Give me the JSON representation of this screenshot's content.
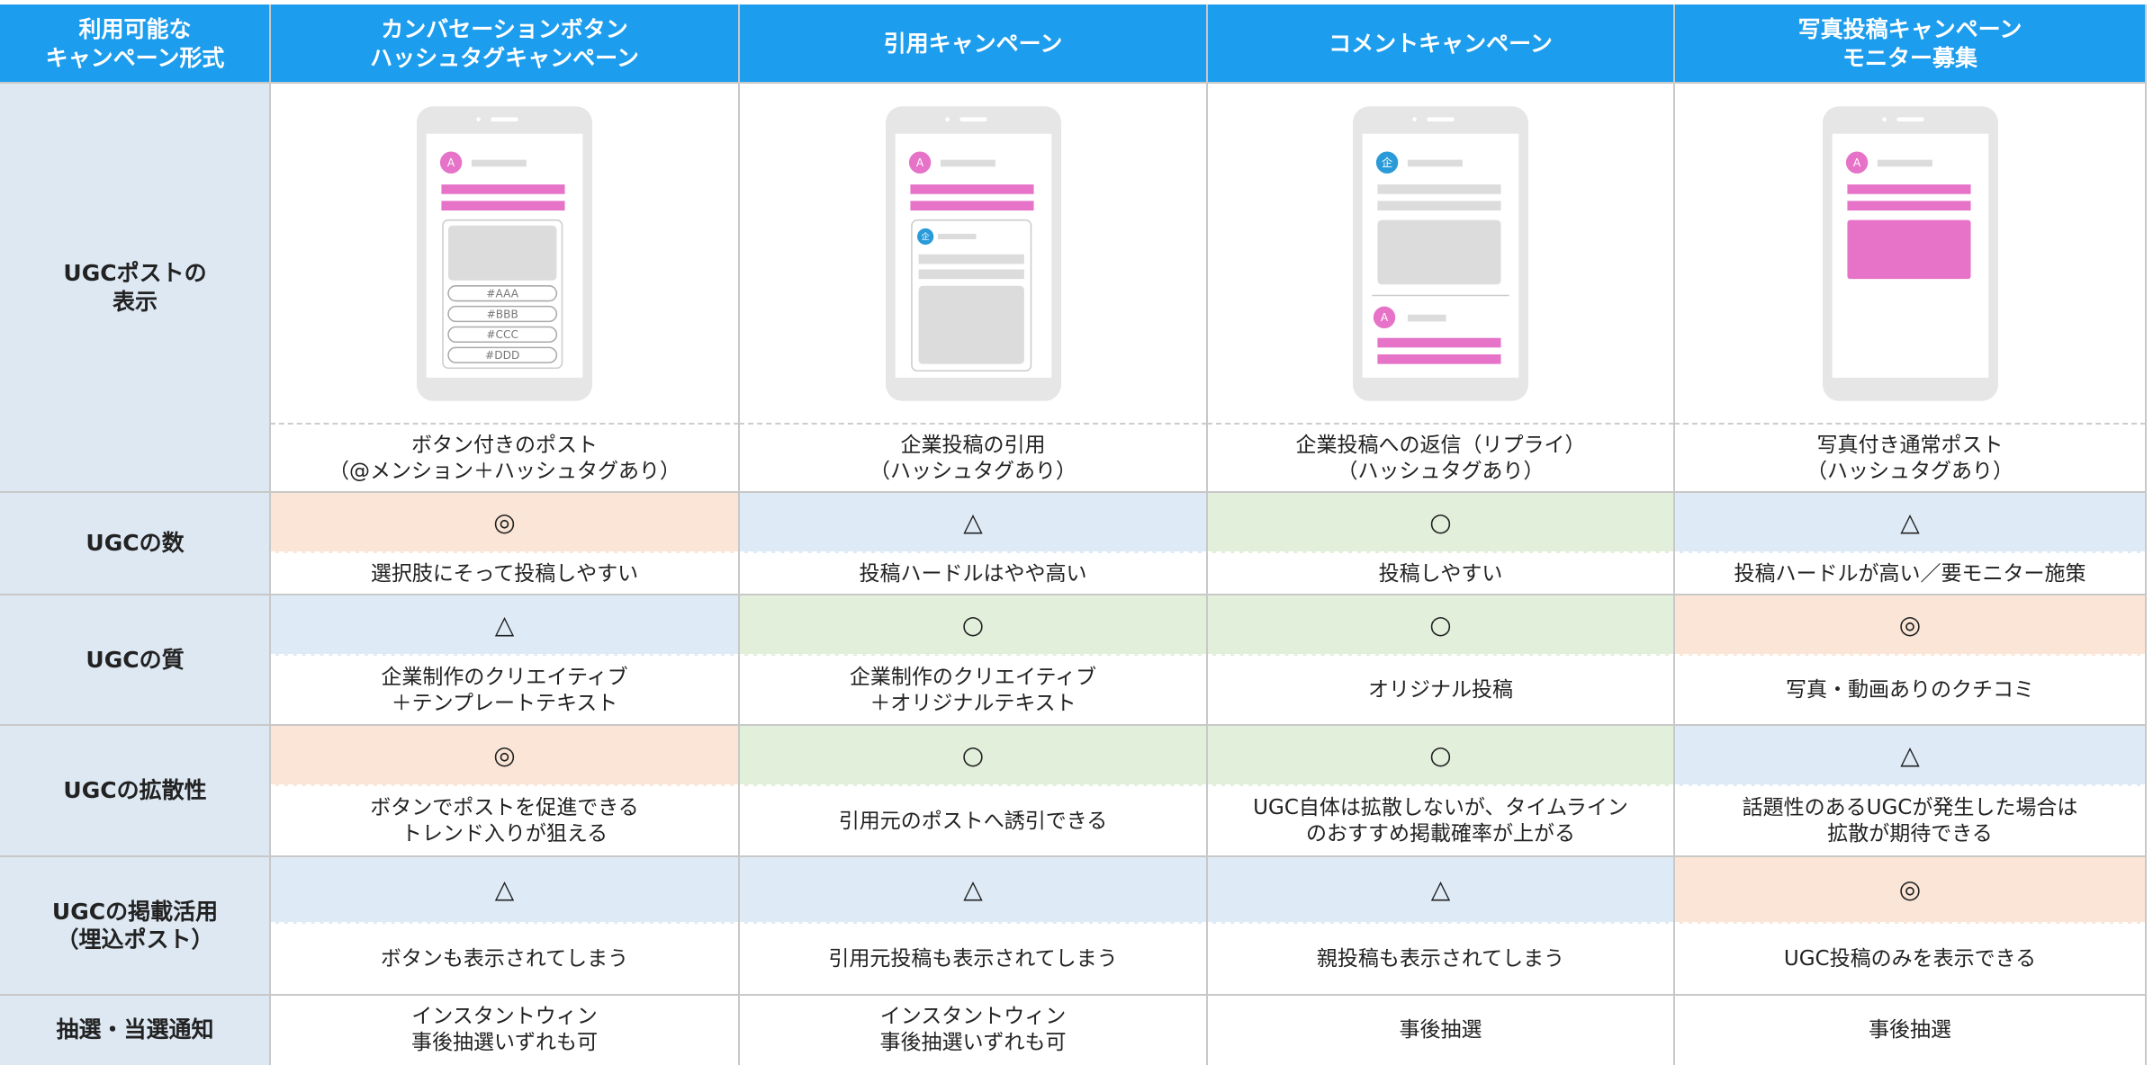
{
  "header": [
    "利用可能な\nキャンペーン形式",
    "カンバセーションボタン\nハッシュタグキャンペーン",
    "引用キャンペーン",
    "コメントキャンペーン",
    "写真投稿キャンペーン\nモニター募集"
  ],
  "display": {
    "label": "UGCポストの\n表示",
    "mockups": [
      {
        "avatars": [
          "A"
        ],
        "tags": [
          "#AAA",
          "#BBB",
          "#CCC",
          "#DDD"
        ]
      },
      {
        "avatars": [
          "A",
          "企"
        ]
      },
      {
        "avatars": [
          "企",
          "A"
        ]
      },
      {
        "avatars": [
          "A"
        ]
      }
    ],
    "captions": [
      "ボタン付きのポスト\n（@メンション＋ハッシュタグあり）",
      "企業投稿の引用\n（ハッシュタグあり）",
      "企業投稿への返信（リプライ）\n（ハッシュタグあり）",
      "写真付き通常ポスト\n（ハッシュタグあり）"
    ]
  },
  "rating_colors": {
    "◎": "#fbe5d6",
    "△": "#deebf7",
    "○": "#e2efda"
  },
  "rows": [
    {
      "label": "UGCの数",
      "ratings": [
        "◎",
        "△",
        "○",
        "△"
      ],
      "notes": [
        "選択肢にそって投稿しやすい",
        "投稿ハードルはやや高い",
        "投稿しやすい",
        "投稿ハードルが高い／要モニター施策"
      ]
    },
    {
      "label": "UGCの質",
      "ratings": [
        "△",
        "○",
        "○",
        "◎"
      ],
      "notes": [
        "企業制作のクリエイティブ\n＋テンプレートテキスト",
        "企業制作のクリエイティブ\n＋オリジナルテキスト",
        "オリジナル投稿",
        "写真・動画ありのクチコミ"
      ]
    },
    {
      "label": "UGCの拡散性",
      "ratings": [
        "◎",
        "○",
        "○",
        "△"
      ],
      "notes": [
        "ボタンでポストを促進できる\nトレンド入りが狙える",
        "引用元のポストへ誘引できる",
        "UGC自体は拡散しないが、タイムライン\nのおすすめ掲載確率が上がる",
        "話題性のあるUGCが発生した場合は\n拡散が期待できる"
      ]
    },
    {
      "label": "UGCの掲載活用\n（埋込ポスト）",
      "ratings": [
        "△",
        "△",
        "△",
        "◎"
      ],
      "notes": [
        "ボタンも表示されてしまう",
        "引用元投稿も表示されてしまう",
        "親投稿も表示されてしまう",
        "UGC投稿のみを表示できる"
      ]
    }
  ],
  "lottery": {
    "label": "抽選・当選通知",
    "notes": [
      "インスタントウィン\n事後抽選いずれも可",
      "インスタントウィン\n事後抽選いずれも可",
      "事後抽選",
      "事後抽選"
    ]
  }
}
